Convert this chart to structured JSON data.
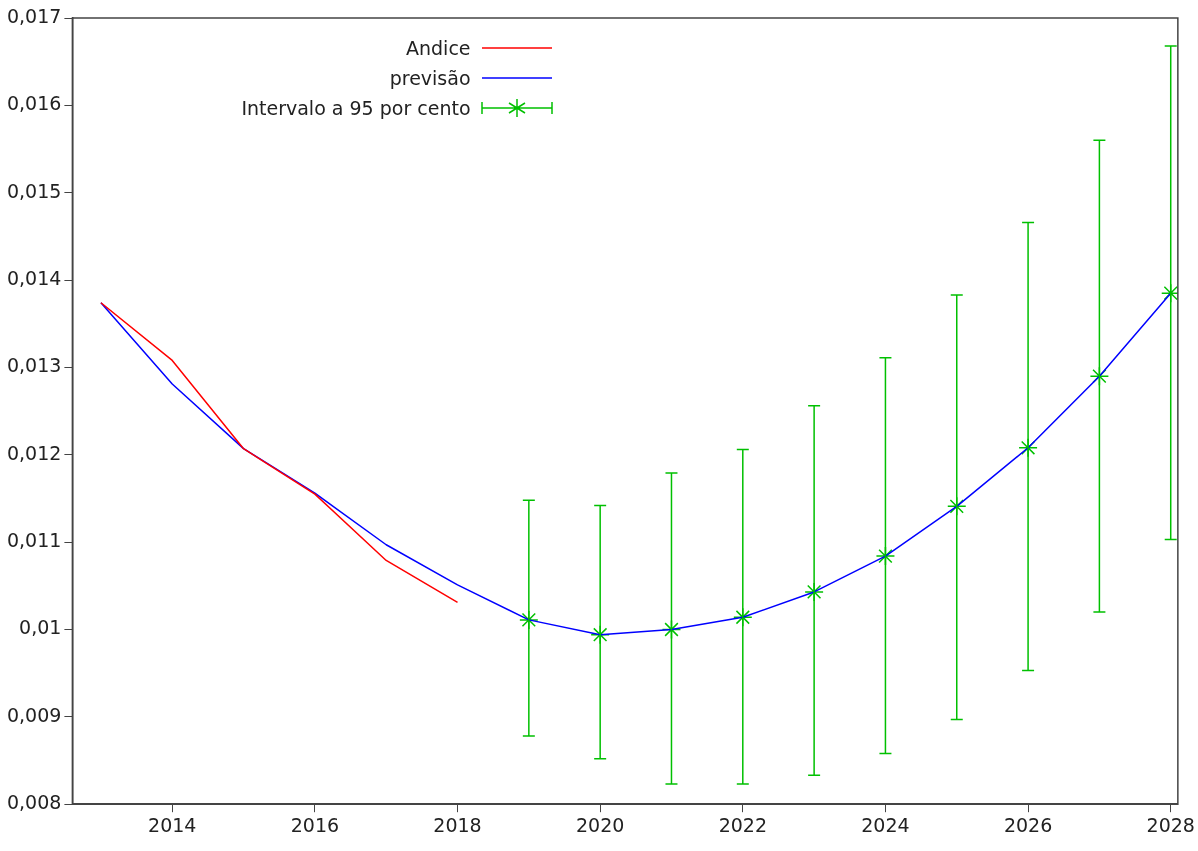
{
  "chart_data": {
    "type": "line",
    "xlim": [
      2012.6,
      2028.1
    ],
    "xticks": [
      2014,
      2016,
      2018,
      2020,
      2022,
      2024,
      2026,
      2028
    ],
    "ylim": [
      0.008,
      0.017
    ],
    "yticks": [
      {
        "value": 0.008,
        "label": "0,008"
      },
      {
        "value": 0.009,
        "label": "0,009"
      },
      {
        "value": 0.01,
        "label": "0,01"
      },
      {
        "value": 0.011,
        "label": "0,011"
      },
      {
        "value": 0.012,
        "label": "0,012"
      },
      {
        "value": 0.013,
        "label": "0,013"
      },
      {
        "value": 0.014,
        "label": "0,014"
      },
      {
        "value": 0.015,
        "label": "0,015"
      },
      {
        "value": 0.016,
        "label": "0,016"
      },
      {
        "value": 0.017,
        "label": "0,017"
      }
    ],
    "grid": false,
    "legend": "top left",
    "line_style": "solid",
    "series": [
      {
        "name": "Andice",
        "color": "#ff0000",
        "x": [
          2013,
          2014,
          2015,
          2016,
          2017,
          2018
        ],
        "values": [
          0.01374,
          0.01308,
          0.01207,
          0.01155,
          0.01079,
          0.01031
        ]
      },
      {
        "name": "previsão",
        "color": "#0000ff",
        "x": [
          2013,
          2014,
          2015,
          2016,
          2017,
          2018,
          2019,
          2020,
          2021,
          2022,
          2023,
          2024,
          2025,
          2026,
          2027,
          2028
        ],
        "values": [
          0.01374,
          0.01281,
          0.01207,
          0.01156,
          0.01097,
          0.01051,
          0.01011,
          0.00994,
          0.01,
          0.01014,
          0.01043,
          0.01084,
          0.01141,
          0.01208,
          0.0129,
          0.01385
        ]
      },
      {
        "name": "Intervalo a 95 por cento",
        "type": "scatter",
        "marker": "cross",
        "color": "#00c000",
        "x": [
          2019,
          2020,
          2021,
          2022,
          2023,
          2024,
          2025,
          2026,
          2027,
          2028
        ],
        "values": [
          0.01011,
          0.00994,
          0.01,
          0.01014,
          0.01043,
          0.01084,
          0.01141,
          0.01208,
          0.0129,
          0.01385
        ],
        "errors": [
          [
            0.00878,
            0.01148
          ],
          [
            0.00852,
            0.01142
          ],
          [
            0.00823,
            0.01179
          ],
          [
            0.00823,
            0.01206
          ],
          [
            0.00833,
            0.01256
          ],
          [
            0.00858,
            0.01311
          ],
          [
            0.00897,
            0.01383
          ],
          [
            0.00953,
            0.01466
          ],
          [
            0.0102,
            0.0156
          ],
          [
            0.01103,
            0.01668
          ]
        ]
      }
    ]
  }
}
